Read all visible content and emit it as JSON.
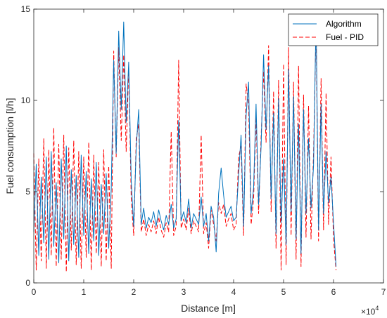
{
  "chart_data": {
    "type": "line",
    "xlabel": "Distance [m]",
    "ylabel": "Fuel consumption [l/h]",
    "x_scale_exponent": "×10",
    "x_scale_power": "4",
    "xlim": [
      0,
      70000
    ],
    "ylim": [
      0,
      15
    ],
    "x_ticks": [
      0,
      10000,
      20000,
      30000,
      40000,
      50000,
      60000,
      70000
    ],
    "x_tick_labels": [
      "0",
      "1",
      "2",
      "3",
      "4",
      "5",
      "6",
      "7"
    ],
    "y_ticks": [
      0,
      5,
      10,
      15
    ],
    "y_tick_labels": [
      "0",
      "5",
      "10",
      "15"
    ],
    "grid": false,
    "legend_position": "top-right",
    "series": [
      {
        "name": "Algorithm",
        "color": "#0072BD",
        "style": "solid",
        "x": [
          0,
          500,
          1000,
          1500,
          2000,
          2500,
          3000,
          3500,
          4000,
          4500,
          5000,
          5500,
          6000,
          6500,
          7000,
          7500,
          8000,
          8500,
          9000,
          9500,
          10000,
          10500,
          11000,
          11500,
          12000,
          12500,
          13000,
          13500,
          14000,
          14500,
          15000,
          15500,
          16000,
          16500,
          17000,
          17500,
          18000,
          18500,
          19000,
          19500,
          20000,
          20500,
          21000,
          21500,
          22000,
          22500,
          23000,
          23500,
          24000,
          24500,
          25000,
          25500,
          26000,
          26500,
          27000,
          27500,
          28000,
          28500,
          29000,
          29500,
          30000,
          30500,
          31000,
          31500,
          32000,
          32500,
          33000,
          33500,
          34000,
          34500,
          35000,
          35500,
          36000,
          36500,
          37000,
          37500,
          38000,
          38500,
          39000,
          39500,
          40000,
          40500,
          41000,
          41500,
          42000,
          42500,
          43000,
          43500,
          44000,
          44500,
          45000,
          45500,
          46000,
          46500,
          47000,
          47500,
          48000,
          48500,
          49000,
          49500,
          50000,
          50500,
          51000,
          51500,
          52000,
          52500,
          53000,
          53500,
          54000,
          54500,
          55000,
          55500,
          56000,
          56500,
          57000,
          57500,
          58000,
          58500,
          59000,
          59500,
          60000,
          60500
        ],
        "y": [
          2.8,
          6.5,
          1.5,
          5.8,
          2.2,
          6.9,
          1.3,
          7.2,
          2.0,
          5.5,
          1.1,
          6.8,
          2.4,
          7.5,
          1.2,
          6.2,
          2.1,
          5.9,
          1.4,
          7.0,
          2.6,
          6.1,
          1.6,
          5.7,
          2.3,
          6.6,
          1.5,
          5.4,
          2.7,
          6.0,
          1.9,
          5.2,
          12.2,
          7.1,
          13.8,
          9.5,
          14.3,
          8.8,
          12.1,
          5.6,
          3.1,
          7.4,
          9.5,
          3.2,
          4.1,
          3.0,
          3.6,
          3.3,
          3.9,
          3.1,
          4.0,
          3.4,
          2.9,
          3.7,
          3.2,
          4.3,
          3.0,
          3.5,
          8.9,
          3.4,
          3.9,
          3.3,
          4.6,
          3.0,
          3.8,
          3.5,
          3.2,
          4.7,
          3.1,
          3.8,
          2.3,
          4.2,
          3.6,
          1.7,
          4.9,
          6.3,
          4.8,
          3.6,
          3.9,
          4.2,
          3.4,
          3.6,
          5.9,
          8.1,
          3.1,
          9.2,
          11.0,
          3.8,
          5.2,
          9.8,
          4.3,
          7.5,
          12.5,
          8.4,
          11.9,
          4.6,
          9.3,
          2.7,
          10.1,
          3.3,
          6.8,
          2.1,
          11.7,
          3.9,
          10.2,
          2.4,
          8.7,
          1.6,
          9.5,
          3.8,
          7.9,
          4.1,
          6.4,
          14.6,
          2.9,
          9.8,
          3.8,
          7.2,
          4.4,
          5.8,
          3.3,
          0.9
        ]
      },
      {
        "name": "Fuel - PID",
        "color": "#FF0000",
        "style": "dashed",
        "x": [
          0,
          500,
          1000,
          1500,
          2000,
          2500,
          3000,
          3500,
          4000,
          4500,
          5000,
          5500,
          6000,
          6500,
          7000,
          7500,
          8000,
          8500,
          9000,
          9500,
          10000,
          10500,
          11000,
          11500,
          12000,
          12500,
          13000,
          13500,
          14000,
          14500,
          15000,
          15500,
          16000,
          16500,
          17000,
          17500,
          18000,
          18500,
          19000,
          19500,
          20000,
          20500,
          21000,
          21500,
          22000,
          22500,
          23000,
          23500,
          24000,
          24500,
          25000,
          25500,
          26000,
          26500,
          27000,
          27500,
          28000,
          28500,
          29000,
          29500,
          30000,
          30500,
          31000,
          31500,
          32000,
          32500,
          33000,
          33500,
          34000,
          34500,
          35000,
          35500,
          36000,
          36500,
          37000,
          37500,
          38000,
          38500,
          39000,
          39500,
          40000,
          40500,
          41000,
          41500,
          42000,
          42500,
          43000,
          43500,
          44000,
          44500,
          45000,
          45500,
          46000,
          46500,
          47000,
          47500,
          48000,
          48500,
          49000,
          49500,
          50000,
          50500,
          51000,
          51500,
          52000,
          52500,
          53000,
          53500,
          54000,
          54500,
          55000,
          55500,
          56000,
          56500,
          57000,
          57500,
          58000,
          58500,
          59000,
          59500,
          60000,
          60500
        ],
        "y": [
          7.1,
          0.7,
          6.8,
          1.2,
          7.9,
          0.8,
          7.3,
          1.5,
          8.5,
          0.9,
          7.6,
          1.3,
          8.1,
          0.6,
          7.4,
          1.8,
          7.8,
          1.0,
          7.2,
          0.8,
          6.9,
          1.4,
          7.7,
          0.7,
          7.0,
          1.6,
          6.6,
          0.9,
          7.3,
          1.2,
          6.4,
          0.8,
          12.7,
          6.9,
          12.9,
          7.8,
          12.5,
          7.2,
          11.8,
          4.6,
          2.6,
          7.9,
          8.7,
          2.8,
          3.5,
          2.6,
          3.2,
          2.8,
          3.4,
          2.7,
          3.6,
          2.9,
          2.5,
          3.3,
          2.8,
          8.3,
          2.6,
          3.1,
          12.2,
          3.0,
          3.5,
          2.9,
          4.1,
          2.7,
          3.4,
          3.1,
          2.8,
          8.1,
          2.7,
          3.3,
          1.9,
          4.0,
          3.2,
          2.3,
          4.4,
          3.8,
          4.3,
          3.1,
          3.5,
          3.8,
          2.9,
          3.2,
          6.9,
          7.5,
          2.6,
          10.9,
          9.8,
          3.2,
          4.6,
          9.1,
          3.8,
          8.0,
          11.6,
          7.7,
          13.0,
          3.9,
          10.5,
          1.9,
          11.1,
          0.7,
          12.0,
          1.0,
          12.9,
          2.6,
          11.0,
          1.3,
          11.9,
          0.9,
          10.3,
          2.5,
          9.7,
          2.4,
          7.1,
          14.0,
          2.3,
          11.2,
          2.9,
          10.4,
          3.2,
          6.9,
          2.4,
          0.7
        ]
      }
    ]
  }
}
